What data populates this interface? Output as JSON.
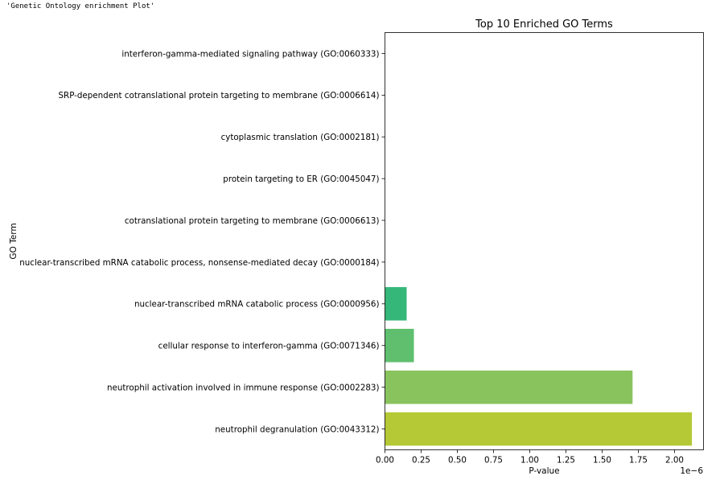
{
  "output_text": "'Genetic Ontology enrichment Plot'",
  "chart_data": {
    "type": "bar",
    "orientation": "horizontal",
    "title": "Top 10 Enriched GO Terms",
    "xlabel": "P-value",
    "ylabel": "GO Term",
    "x_offset_label": "1e−6",
    "x_scale": 1e-06,
    "xlim": [
      0,
      2.2
    ],
    "xticks": [
      "0.00",
      "0.25",
      "0.50",
      "0.75",
      "1.00",
      "1.25",
      "1.50",
      "1.75",
      "2.00"
    ],
    "categories": [
      "interferon-gamma-mediated signaling pathway (GO:0060333)",
      "SRP-dependent cotranslational protein targeting to membrane (GO:0006614)",
      "cytoplasmic translation (GO:0002181)",
      "protein targeting to ER (GO:0045047)",
      "cotranslational protein targeting to membrane (GO:0006613)",
      "nuclear-transcribed mRNA catabolic process, nonsense-mediated decay (GO:0000184)",
      "nuclear-transcribed mRNA catabolic process (GO:0000956)",
      "cellular response to interferon-gamma (GO:0071346)",
      "neutrophil activation involved in immune response (GO:0002283)",
      "neutrophil degranulation (GO:0043312)"
    ],
    "values": [
      0.0,
      0.0,
      0.0,
      0.0,
      0.0,
      0.0,
      0.15,
      0.2,
      1.71,
      2.12
    ],
    "colors": [
      "#440154",
      "#482878",
      "#3e4989",
      "#31688e",
      "#26828e",
      "#1f9e89",
      "#35b779",
      "#5fbf6e",
      "#89c35d",
      "#b5c936"
    ],
    "grid": false,
    "legend": false
  }
}
